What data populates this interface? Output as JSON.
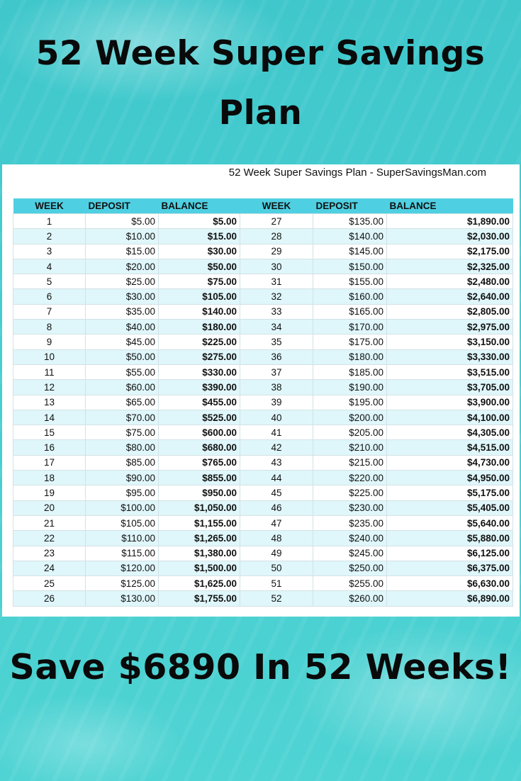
{
  "headline": {
    "line1": "52 Week Super Savings",
    "line2": "Plan"
  },
  "panel": {
    "subtitle": "52 Week Super Savings Plan - SuperSavingsMan.com",
    "columns": [
      "WEEK",
      "DEPOSIT",
      "BALANCE",
      "WEEK",
      "DEPOSIT",
      "BALANCE"
    ],
    "rows": [
      [
        "1",
        "$5.00",
        "$5.00",
        "27",
        "$135.00",
        "$1,890.00"
      ],
      [
        "2",
        "$10.00",
        "$15.00",
        "28",
        "$140.00",
        "$2,030.00"
      ],
      [
        "3",
        "$15.00",
        "$30.00",
        "29",
        "$145.00",
        "$2,175.00"
      ],
      [
        "4",
        "$20.00",
        "$50.00",
        "30",
        "$150.00",
        "$2,325.00"
      ],
      [
        "5",
        "$25.00",
        "$75.00",
        "31",
        "$155.00",
        "$2,480.00"
      ],
      [
        "6",
        "$30.00",
        "$105.00",
        "32",
        "$160.00",
        "$2,640.00"
      ],
      [
        "7",
        "$35.00",
        "$140.00",
        "33",
        "$165.00",
        "$2,805.00"
      ],
      [
        "8",
        "$40.00",
        "$180.00",
        "34",
        "$170.00",
        "$2,975.00"
      ],
      [
        "9",
        "$45.00",
        "$225.00",
        "35",
        "$175.00",
        "$3,150.00"
      ],
      [
        "10",
        "$50.00",
        "$275.00",
        "36",
        "$180.00",
        "$3,330.00"
      ],
      [
        "11",
        "$55.00",
        "$330.00",
        "37",
        "$185.00",
        "$3,515.00"
      ],
      [
        "12",
        "$60.00",
        "$390.00",
        "38",
        "$190.00",
        "$3,705.00"
      ],
      [
        "13",
        "$65.00",
        "$455.00",
        "39",
        "$195.00",
        "$3,900.00"
      ],
      [
        "14",
        "$70.00",
        "$525.00",
        "40",
        "$200.00",
        "$4,100.00"
      ],
      [
        "15",
        "$75.00",
        "$600.00",
        "41",
        "$205.00",
        "$4,305.00"
      ],
      [
        "16",
        "$80.00",
        "$680.00",
        "42",
        "$210.00",
        "$4,515.00"
      ],
      [
        "17",
        "$85.00",
        "$765.00",
        "43",
        "$215.00",
        "$4,730.00"
      ],
      [
        "18",
        "$90.00",
        "$855.00",
        "44",
        "$220.00",
        "$4,950.00"
      ],
      [
        "19",
        "$95.00",
        "$950.00",
        "45",
        "$225.00",
        "$5,175.00"
      ],
      [
        "20",
        "$100.00",
        "$1,050.00",
        "46",
        "$230.00",
        "$5,405.00"
      ],
      [
        "21",
        "$105.00",
        "$1,155.00",
        "47",
        "$235.00",
        "$5,640.00"
      ],
      [
        "22",
        "$110.00",
        "$1,265.00",
        "48",
        "$240.00",
        "$5,880.00"
      ],
      [
        "23",
        "$115.00",
        "$1,380.00",
        "49",
        "$245.00",
        "$6,125.00"
      ],
      [
        "24",
        "$120.00",
        "$1,500.00",
        "50",
        "$250.00",
        "$6,375.00"
      ],
      [
        "25",
        "$125.00",
        "$1,625.00",
        "51",
        "$255.00",
        "$6,630.00"
      ],
      [
        "26",
        "$130.00",
        "$1,755.00",
        "52",
        "$260.00",
        "$6,890.00"
      ]
    ]
  },
  "footer": {
    "tagline": "Save $6890 In 52 Weeks!"
  },
  "colors": {
    "background_water": "#45cdd0",
    "header_row": "#4fd0e2",
    "alt_row": "#dff6fa",
    "text": "#0a0a0a"
  }
}
